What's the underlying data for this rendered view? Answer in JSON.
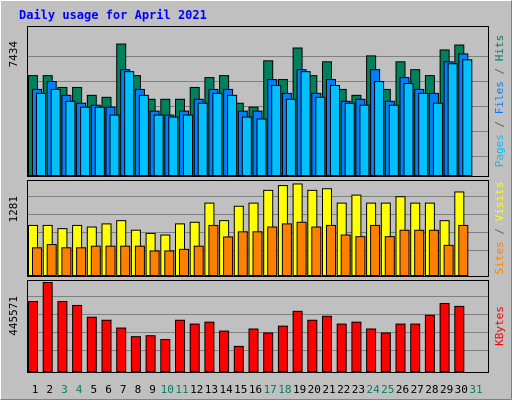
{
  "chart_data": [
    {
      "panel": "hits-files-pages",
      "type": "bar",
      "title": "Daily usage for April 2021",
      "categories": [
        "1",
        "2",
        "3",
        "4",
        "5",
        "6",
        "7",
        "8",
        "9",
        "10",
        "11",
        "12",
        "13",
        "14",
        "15",
        "16",
        "17",
        "18",
        "19",
        "20",
        "21",
        "22",
        "23",
        "24",
        "25",
        "26",
        "27",
        "28",
        "29",
        "30",
        "31"
      ],
      "ylabel": "Pages / Files / Hits",
      "ylabel_parts": [
        {
          "text": "Pages",
          "color": "#00c0ff"
        },
        {
          "text": " / ",
          "color": "#606060"
        },
        {
          "text": "Files",
          "color": "#0080ff"
        },
        {
          "text": " / ",
          "color": "#606060"
        },
        {
          "text": "Hits",
          "color": "#00805c"
        }
      ],
      "ytick_label": "7434",
      "ytick_value": 7434,
      "ylim": [
        0,
        9000
      ],
      "series": [
        {
          "name": "Hits",
          "color": "#00805c",
          "values": [
            6135,
            6135,
            5415,
            5415,
            4935,
            4815,
            8055,
            6135,
            4695,
            4695,
            4695,
            5415,
            6015,
            6135,
            4455,
            4215,
            7035,
            5895,
            7815,
            6135,
            6975,
            5295,
            4935,
            7335,
            5295,
            6975,
            6495,
            6135,
            7695,
            7995,
            null
          ]
        },
        {
          "name": "Files",
          "color": "#0080ff",
          "values": [
            5295,
            5775,
            4935,
            4455,
            4335,
            4215,
            6495,
            5295,
            3975,
            3735,
            3975,
            4695,
            5295,
            5295,
            3975,
            3975,
            5895,
            5055,
            6495,
            5055,
            5895,
            4575,
            4695,
            6495,
            4575,
            6015,
            5295,
            5055,
            6975,
            7455,
            null
          ]
        },
        {
          "name": "Pages",
          "color": "#00c0ff",
          "values": [
            5055,
            5295,
            4575,
            4215,
            4215,
            3735,
            6375,
            4935,
            3735,
            3615,
            3735,
            4455,
            5055,
            4935,
            3615,
            3495,
            5535,
            4695,
            6375,
            4815,
            5535,
            4455,
            4335,
            5775,
            4335,
            5655,
            5055,
            4455,
            6855,
            7095,
            null
          ]
        }
      ]
    },
    {
      "panel": "visits-sites",
      "type": "bar",
      "categories": [
        "1",
        "2",
        "3",
        "4",
        "5",
        "6",
        "7",
        "8",
        "9",
        "10",
        "11",
        "12",
        "13",
        "14",
        "15",
        "16",
        "17",
        "18",
        "19",
        "20",
        "21",
        "22",
        "23",
        "24",
        "25",
        "26",
        "27",
        "28",
        "29",
        "30",
        "31"
      ],
      "ylabel": "Sites / Visits",
      "ylabel_parts": [
        {
          "text": "Sites",
          "color": "#ff8000"
        },
        {
          "text": " / ",
          "color": "#606060"
        },
        {
          "text": "Visits",
          "color": "#ffff00"
        }
      ],
      "ytick_label": "1281",
      "ytick_value": 1281,
      "ylim": [
        0,
        1281
      ],
      "series": [
        {
          "name": "Visits",
          "color": "#ffff00",
          "values": [
            696,
            696,
            652,
            696,
            674,
            717,
            761,
            631,
            587,
            565,
            717,
            739,
            1000,
            761,
            957,
            1000,
            1174,
            1239,
            1261,
            1174,
            1196,
            1000,
            1109,
            1000,
            1000,
            1087,
            1000,
            1000,
            761,
            1152,
            null
          ]
        },
        {
          "name": "Sites",
          "color": "#ff8000",
          "values": [
            391,
            435,
            391,
            391,
            413,
            413,
            413,
            413,
            348,
            348,
            370,
            413,
            696,
            539,
            609,
            609,
            674,
            717,
            739,
            674,
            696,
            565,
            543,
            696,
            543,
            630,
            630,
            630,
            424,
            696,
            null
          ]
        }
      ]
    },
    {
      "panel": "kbytes",
      "type": "bar",
      "categories": [
        "1",
        "2",
        "3",
        "4",
        "5",
        "6",
        "7",
        "8",
        "9",
        "10",
        "11",
        "12",
        "13",
        "14",
        "15",
        "16",
        "17",
        "18",
        "19",
        "20",
        "21",
        "22",
        "23",
        "24",
        "25",
        "26",
        "27",
        "28",
        "29",
        "30",
        "31"
      ],
      "ylabel": "KBytes",
      "ylabel_parts": [
        {
          "text": "KBytes",
          "color": "#ff0000"
        }
      ],
      "ytick_label": "445571",
      "ytick_value": 445571,
      "ylim": [
        0,
        565000
      ],
      "series": [
        {
          "name": "KBytes",
          "color": "#ff0000",
          "values": [
            445571,
            565000,
            445571,
            421000,
            347000,
            328000,
            279000,
            225000,
            231000,
            207000,
            328000,
            304000,
            316000,
            260000,
            164000,
            273000,
            248000,
            291000,
            384000,
            328000,
            353000,
            304000,
            316000,
            273000,
            248000,
            304000,
            304000,
            359000,
            433000,
            415000,
            null
          ]
        }
      ]
    }
  ],
  "x_axis": {
    "labels": [
      "1",
      "2",
      "3",
      "4",
      "5",
      "6",
      "7",
      "8",
      "9",
      "10",
      "11",
      "12",
      "13",
      "14",
      "15",
      "16",
      "17",
      "18",
      "19",
      "20",
      "21",
      "22",
      "23",
      "24",
      "25",
      "26",
      "27",
      "28",
      "29",
      "30",
      "31"
    ],
    "weekend_days": [
      "3",
      "4",
      "10",
      "11",
      "17",
      "18",
      "24",
      "25",
      "31"
    ],
    "weekday_color": "#000000",
    "weekend_color": "#00805c"
  },
  "colors": {
    "background": "#c0c0c0",
    "title": "#0000ff",
    "panel_border": "#000000",
    "bevel_light": "#ffffff",
    "bevel_dark": "#808080",
    "gridline": "#808080"
  }
}
